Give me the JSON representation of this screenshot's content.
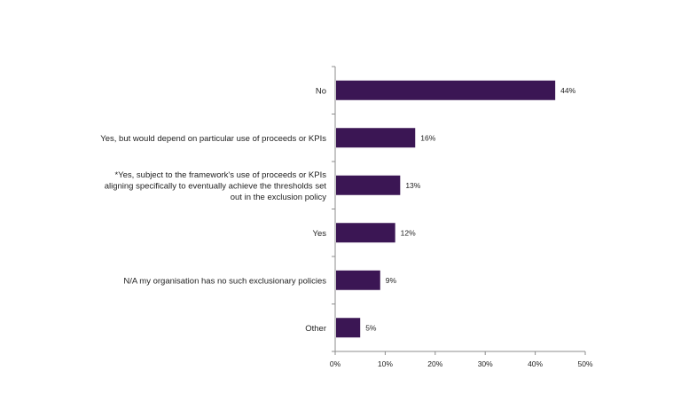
{
  "chart_data": {
    "type": "bar",
    "orientation": "horizontal",
    "categories": [
      [
        "No"
      ],
      [
        "Yes, but would depend on particular use of proceeds or KPIs"
      ],
      [
        "*Yes, subject to the framework's use of proceeds or KPIs",
        "aligning specifically to eventually achieve the thresholds set",
        "out in the exclusion policy"
      ],
      [
        "Yes"
      ],
      [
        "N/A my organisation has no such exclusionary policies"
      ],
      [
        "Other"
      ]
    ],
    "values": [
      44,
      16,
      13,
      12,
      9,
      5
    ],
    "data_labels": [
      "44%",
      "16%",
      "13%",
      "12%",
      "9%",
      "5%"
    ],
    "xlim": [
      0,
      50
    ],
    "xticks": [
      0,
      10,
      20,
      30,
      40,
      50
    ],
    "xtick_labels": [
      "0%",
      "10%",
      "20%",
      "30%",
      "40%",
      "50%"
    ],
    "title": "",
    "xlabel": "",
    "ylabel": "",
    "grid": false,
    "legend": "none",
    "bar_color": "#3b1654"
  }
}
